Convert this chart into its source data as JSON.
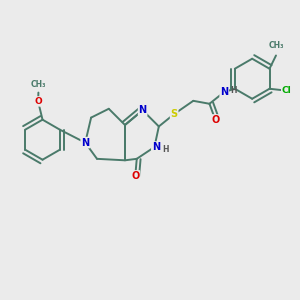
{
  "background_color": "#ebebeb",
  "bond_color": "#4a7a6a",
  "bond_width": 1.4,
  "atom_colors": {
    "N": "#0000cc",
    "O": "#dd0000",
    "S": "#cccc00",
    "Cl": "#00aa00",
    "C": "#000000",
    "H": "#555555"
  }
}
